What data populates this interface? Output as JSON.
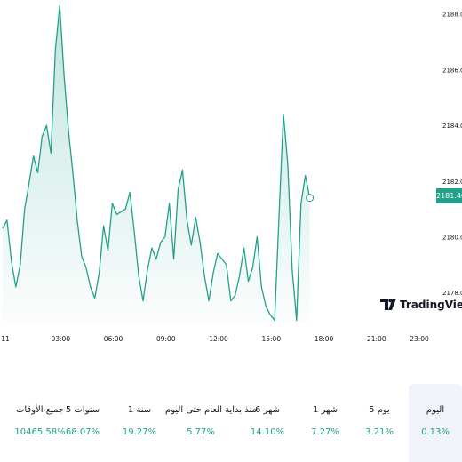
{
  "chart_data": {
    "type": "area",
    "x_ticks": [
      "11",
      "03:00",
      "06:00",
      "09:00",
      "12:00",
      "15:00",
      "18:00",
      "21:00",
      "23:00"
    ],
    "y_ticks": [
      "2188.00",
      "2186.00",
      "2184.00",
      "2182.00",
      "2180.00",
      "2178.00"
    ],
    "ylim": [
      2176.7,
      2188.5
    ],
    "last_price": "2181.40",
    "line_color": "#22a08a",
    "fill_color": "#e3f4f0",
    "series": [
      {
        "x": [
          0,
          0.25,
          0.5,
          0.75,
          1,
          1.25,
          1.5,
          1.75,
          2,
          2.25,
          2.5,
          2.75,
          3,
          3.25,
          3.5,
          3.75,
          4,
          4.25,
          4.5,
          4.75,
          5,
          5.25,
          5.5,
          5.75,
          6,
          6.25,
          6.5,
          6.75,
          7,
          7.25,
          7.5,
          7.75,
          8,
          8.25,
          8.5,
          8.75,
          9,
          9.25,
          9.5,
          9.75,
          10,
          10.25,
          10.5,
          10.75,
          11,
          11.25,
          11.5,
          11.75,
          12,
          12.25,
          12.5,
          12.75,
          13,
          13.25,
          13.5,
          13.75,
          14,
          14.25,
          14.5,
          14.75,
          15,
          15.25,
          15.5,
          15.75,
          16,
          16.25,
          16.5,
          16.75,
          17,
          17.25,
          17.5
        ],
        "y": [
          2180.3,
          2180.6,
          2179.1,
          2178.2,
          2179.0,
          2181.0,
          2181.9,
          2182.9,
          2182.3,
          2183.6,
          2184.0,
          2183.0,
          2186.7,
          2188.3,
          2185.8,
          2183.8,
          2182.3,
          2180.6,
          2179.3,
          2178.9,
          2178.2,
          2177.8,
          2178.7,
          2180.4,
          2179.5,
          2181.2,
          2180.8,
          2180.9,
          2181.0,
          2181.6,
          2180.2,
          2178.6,
          2177.7,
          2178.8,
          2179.6,
          2179.2,
          2179.8,
          2180.0,
          2181.2,
          2179.2,
          2181.7,
          2182.4,
          2180.6,
          2179.7,
          2180.7,
          2179.8,
          2178.6,
          2177.7,
          2178.7,
          2179.4,
          2179.2,
          2179.0,
          2177.7,
          2177.9,
          2178.6,
          2179.6,
          2178.4,
          2178.9,
          2180.0,
          2178.2,
          2177.5,
          2177.2,
          2177.0,
          2180.8,
          2184.4,
          2182.6,
          2178.8,
          2177.0,
          2181.2,
          2182.2,
          2181.4
        ],
        "x_unit": "hours since 00:00 of day 11"
      }
    ]
  },
  "performance": [
    {
      "label": "اليوم",
      "value": "0.13%",
      "selected": true
    },
    {
      "label": "5 يوم",
      "value": "3.21%",
      "selected": false
    },
    {
      "label": "1 شهر",
      "value": "7.27%",
      "selected": false
    },
    {
      "label": "6 شهر",
      "value": "14.10%",
      "selected": false
    },
    {
      "label": "منذ بداية العام حتى اليوم",
      "value": "5.77%",
      "selected": false
    },
    {
      "label": "1 سنة",
      "value": "19.27%",
      "selected": false
    },
    {
      "label": "5 سنوات",
      "value": "68.07%",
      "selected": false
    },
    {
      "label": "جميع الأوقات",
      "value": "10465.58%",
      "selected": false
    }
  ],
  "watermark": {
    "brand": "TradingView",
    "icon": "tradingview-logo-icon"
  }
}
